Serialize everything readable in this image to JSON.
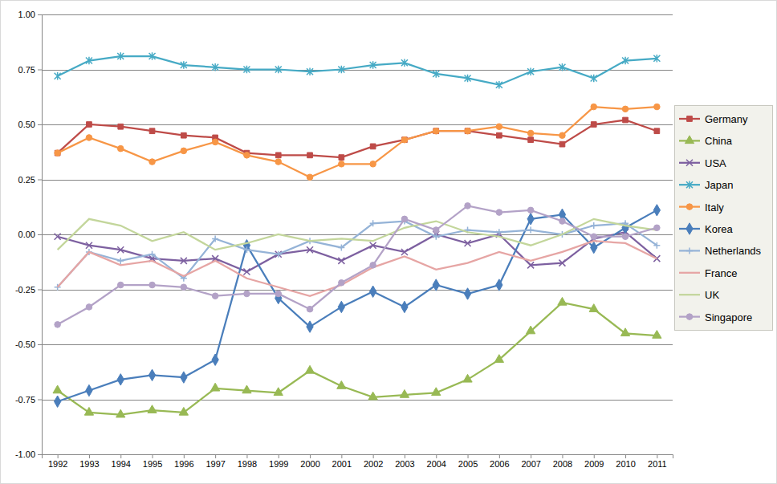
{
  "chart_data": {
    "type": "line",
    "categories": [
      "1992",
      "1993",
      "1994",
      "1995",
      "1996",
      "1997",
      "1998",
      "1999",
      "2000",
      "2001",
      "2002",
      "2003",
      "2004",
      "2005",
      "2006",
      "2007",
      "2008",
      "2009",
      "2010",
      "2011"
    ],
    "ylim": [
      -1,
      1
    ],
    "yticks": [
      {
        "value": -1,
        "label": "-1.00"
      },
      -0.75,
      {
        "value": -0.5,
        "label": "-0.50"
      },
      -0.25,
      {
        "value": 0,
        "label": "0.00"
      },
      0.25,
      {
        "value": 0.5,
        "label": "0.50"
      },
      0.75,
      {
        "value": 1,
        "label": "1.00"
      }
    ],
    "grid": true,
    "legend": "right",
    "series": [
      {
        "name": "Germany",
        "color": "#be4b48",
        "marker": "square",
        "values": [
          0.37,
          0.5,
          0.49,
          0.47,
          0.45,
          0.44,
          0.37,
          0.36,
          0.36,
          0.35,
          0.4,
          0.43,
          0.47,
          0.47,
          0.45,
          0.43,
          0.41,
          0.5,
          0.52,
          0.47
        ]
      },
      {
        "name": "China",
        "color": "#98b954",
        "marker": "triangle",
        "values": [
          -0.71,
          -0.81,
          -0.82,
          -0.8,
          -0.81,
          -0.7,
          -0.71,
          -0.72,
          -0.62,
          -0.69,
          -0.74,
          -0.73,
          -0.72,
          -0.66,
          -0.57,
          -0.44,
          -0.31,
          -0.34,
          -0.45,
          -0.46
        ]
      },
      {
        "name": "USA",
        "color": "#7d60a0",
        "marker": "x",
        "values": [
          -0.01,
          -0.05,
          -0.07,
          -0.11,
          -0.12,
          -0.11,
          -0.17,
          -0.09,
          -0.07,
          -0.12,
          -0.05,
          -0.08,
          0.0,
          -0.04,
          0.0,
          -0.14,
          -0.13,
          -0.02,
          0.01,
          -0.11
        ]
      },
      {
        "name": "Japan",
        "color": "#46aac5",
        "marker": "asterisk",
        "values": [
          0.72,
          0.79,
          0.81,
          0.81,
          0.77,
          0.76,
          0.75,
          0.75,
          0.74,
          0.75,
          0.77,
          0.78,
          0.73,
          0.71,
          0.68,
          0.74,
          0.76,
          0.71,
          0.79,
          0.8
        ]
      },
      {
        "name": "Italy",
        "color": "#f79646",
        "marker": "circle",
        "values": [
          0.37,
          0.44,
          0.39,
          0.33,
          0.38,
          0.42,
          0.36,
          0.33,
          0.26,
          0.32,
          0.32,
          0.43,
          0.47,
          0.47,
          0.49,
          0.46,
          0.45,
          0.58,
          0.57,
          0.58
        ]
      },
      {
        "name": "Korea",
        "color": "#4a7ebb",
        "marker": "diamond",
        "values": [
          -0.76,
          -0.71,
          -0.66,
          -0.64,
          -0.65,
          -0.57,
          -0.05,
          -0.29,
          -0.42,
          -0.33,
          -0.26,
          -0.33,
          -0.23,
          -0.27,
          -0.23,
          0.07,
          0.09,
          -0.06,
          0.03,
          0.11
        ]
      },
      {
        "name": "Netherlands",
        "color": "#95b3d7",
        "marker": "plus",
        "values": [
          -0.24,
          -0.08,
          -0.12,
          -0.09,
          -0.2,
          -0.02,
          -0.07,
          -0.09,
          -0.03,
          -0.06,
          0.05,
          0.06,
          -0.01,
          0.02,
          0.01,
          0.02,
          0.0,
          0.04,
          0.05,
          -0.05
        ]
      },
      {
        "name": "France",
        "color": "#e6a5a4",
        "marker": "none",
        "values": [
          -0.24,
          -0.08,
          -0.14,
          -0.12,
          -0.19,
          -0.12,
          -0.2,
          -0.24,
          -0.28,
          -0.23,
          -0.15,
          -0.1,
          -0.16,
          -0.13,
          -0.08,
          -0.12,
          -0.08,
          -0.03,
          -0.04,
          -0.11
        ]
      },
      {
        "name": "UK",
        "color": "#c3d69b",
        "marker": "none",
        "values": [
          -0.07,
          0.07,
          0.04,
          -0.03,
          0.01,
          -0.07,
          -0.04,
          0.0,
          -0.03,
          -0.02,
          -0.03,
          0.03,
          0.06,
          0.01,
          -0.01,
          -0.05,
          0.0,
          0.07,
          0.04,
          0.02
        ]
      },
      {
        "name": "Singapore",
        "color": "#b3a2c7",
        "marker": "circle",
        "values": [
          -0.41,
          -0.33,
          -0.23,
          -0.23,
          -0.24,
          -0.28,
          -0.27,
          -0.27,
          -0.34,
          -0.22,
          -0.14,
          0.07,
          0.02,
          0.13,
          0.1,
          0.11,
          0.06,
          -0.01,
          -0.01,
          0.03
        ]
      }
    ]
  }
}
